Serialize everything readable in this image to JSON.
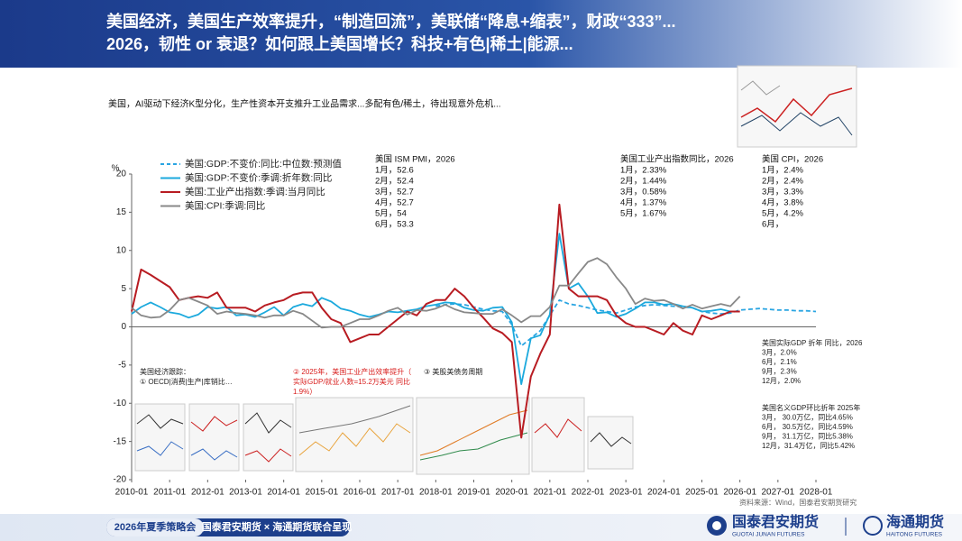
{
  "header": {
    "title_line1": "美国经济，美国生产效率提升，“制造回流”，美联储“降息+缩表”，财政“333”...",
    "title_line2": "2026，韧性 or  衰退？如何跟上美国增长？科技+有色|稀土|能源..."
  },
  "subtitle": "美国，AI驱动下经济K型分化，生产性资本开支推升工业品需求...多配有色/稀土，待出现意外危机...",
  "chart_data": {
    "type": "line",
    "y_unit": "%",
    "x": [
      "2010-01",
      "2010-04",
      "2010-07",
      "2010-10",
      "2011-01",
      "2011-04",
      "2011-07",
      "2011-10",
      "2012-01",
      "2012-04",
      "2012-07",
      "2012-10",
      "2013-01",
      "2013-04",
      "2013-07",
      "2013-10",
      "2014-01",
      "2014-04",
      "2014-07",
      "2014-10",
      "2015-01",
      "2015-04",
      "2015-07",
      "2015-10",
      "2016-01",
      "2016-04",
      "2016-07",
      "2016-10",
      "2017-01",
      "2017-04",
      "2017-07",
      "2017-10",
      "2018-01",
      "2018-04",
      "2018-07",
      "2018-10",
      "2019-01",
      "2019-04",
      "2019-07",
      "2019-10",
      "2020-01",
      "2020-04",
      "2020-07",
      "2020-10",
      "2021-01",
      "2021-04",
      "2021-07",
      "2021-10",
      "2022-01",
      "2022-04",
      "2022-07",
      "2022-10",
      "2023-01",
      "2023-04",
      "2023-07",
      "2023-10",
      "2024-01",
      "2024-04",
      "2024-07",
      "2024-10",
      "2025-01",
      "2025-04",
      "2025-07",
      "2025-10",
      "2026-01",
      "2026-04",
      "2026-07",
      "2026-10",
      "2027-01",
      "2027-04",
      "2027-07",
      "2027-10",
      "2028-01"
    ],
    "series": [
      {
        "name": "美国:GDP:不变价:同比:中位数:预测值",
        "color": "#2aa5e2",
        "style": "dashed",
        "values": [
          null,
          null,
          null,
          null,
          null,
          null,
          null,
          null,
          null,
          null,
          null,
          null,
          null,
          null,
          null,
          null,
          null,
          null,
          null,
          null,
          null,
          null,
          null,
          null,
          null,
          null,
          null,
          null,
          null,
          null,
          null,
          null,
          2.7,
          2.9,
          3.0,
          2.9,
          2.6,
          2.3,
          2.1,
          2.0,
          0.3,
          -2.5,
          -1.5,
          -0.5,
          1.5,
          3.5,
          3.0,
          2.8,
          2.5,
          2.2,
          2.0,
          1.8,
          2.2,
          2.6,
          2.8,
          2.9,
          2.8,
          2.7,
          2.6,
          2.5,
          2.0,
          1.8,
          1.7,
          1.8,
          2.2,
          2.3,
          2.4,
          2.3,
          2.2,
          2.2,
          2.1,
          2.1,
          2.0
        ]
      },
      {
        "name": "美国:GDP:不变价:季调:折年数:同比",
        "color": "#1ba9dd",
        "style": "solid",
        "values": [
          1.7,
          2.6,
          3.2,
          2.6,
          1.9,
          1.7,
          1.2,
          1.6,
          2.6,
          2.4,
          2.6,
          1.5,
          1.6,
          1.3,
          1.9,
          2.6,
          1.5,
          2.6,
          3.0,
          2.7,
          3.8,
          3.3,
          2.4,
          2.1,
          1.6,
          1.3,
          1.6,
          2.0,
          1.9,
          2.1,
          2.3,
          2.7,
          2.9,
          3.2,
          3.1,
          2.5,
          2.2,
          2.1,
          2.5,
          2.6,
          0.6,
          -7.5,
          -1.5,
          -1.1,
          1.6,
          12.2,
          5.0,
          5.7,
          4.0,
          1.8,
          1.9,
          1.3,
          1.7,
          2.4,
          3.2,
          3.2,
          2.9,
          3.0,
          2.7,
          2.5,
          2.0,
          2.1,
          2.3,
          2.0,
          null,
          null,
          null,
          null,
          null,
          null,
          null,
          null,
          null
        ]
      },
      {
        "name": "美国:工业产出指数:季调:当月同比",
        "color": "#b81c22",
        "style": "solid",
        "values": [
          2.0,
          7.5,
          6.8,
          6.0,
          5.2,
          3.5,
          3.8,
          4.0,
          3.8,
          4.5,
          2.5,
          2.5,
          2.5,
          2.0,
          2.8,
          3.2,
          3.5,
          4.2,
          4.5,
          4.5,
          2.5,
          1.0,
          0.5,
          -2.0,
          -1.5,
          -1.0,
          -1.0,
          0.0,
          1.0,
          2.0,
          1.5,
          3.0,
          3.5,
          3.5,
          5.0,
          4.0,
          2.5,
          1.2,
          -0.2,
          -0.8,
          -2.0,
          -14.5,
          -6.5,
          -3.5,
          -1.0,
          16.0,
          5.0,
          4.0,
          4.0,
          4.0,
          3.5,
          1.5,
          0.5,
          0.0,
          0.0,
          -0.5,
          -1.0,
          0.5,
          -0.5,
          -1.0,
          1.5,
          1.0,
          1.5,
          2.0,
          2.0,
          null,
          null,
          null,
          null,
          null,
          null,
          null,
          null
        ]
      },
      {
        "name": "美国:CPI:季调:同比",
        "color": "#888888",
        "style": "solid",
        "values": [
          2.5,
          1.5,
          1.2,
          1.3,
          2.2,
          3.5,
          3.8,
          3.3,
          2.8,
          1.7,
          2.0,
          1.8,
          1.7,
          1.5,
          1.2,
          1.5,
          1.5,
          2.1,
          1.7,
          0.8,
          -0.1,
          0.0,
          0.0,
          0.5,
          1.0,
          1.0,
          1.5,
          2.1,
          2.5,
          1.6,
          2.2,
          2.1,
          2.4,
          2.9,
          2.3,
          1.9,
          1.8,
          1.7,
          1.7,
          2.3,
          1.5,
          0.6,
          1.4,
          1.4,
          2.6,
          5.4,
          5.4,
          7.0,
          8.5,
          9.0,
          8.2,
          6.5,
          5.0,
          3.0,
          3.7,
          3.4,
          3.5,
          3.0,
          2.4,
          2.9,
          2.4,
          2.7,
          3.0,
          2.7,
          4.0,
          null,
          null,
          null,
          null,
          null,
          null,
          null,
          null
        ]
      }
    ],
    "xlim": [
      "2010-01",
      "2028-01"
    ],
    "xticks": [
      "2010-01",
      "2011-01",
      "2012-01",
      "2013-01",
      "2014-01",
      "2015-01",
      "2016-01",
      "2017-01",
      "2018-01",
      "2019-01",
      "2020-01",
      "2021-01",
      "2022-01",
      "2023-01",
      "2024-01",
      "2025-01",
      "2026-01",
      "2027-01",
      "2028-01"
    ],
    "ylim": [
      -20,
      20
    ],
    "yticks": [
      -20,
      -15,
      -10,
      -5,
      0,
      5,
      10,
      15,
      20
    ],
    "grid": false,
    "legend": "top-left"
  },
  "notes": [
    {
      "title": "美国 ISM PMI，2026",
      "rows": [
        "1月，52.6",
        "2月，52.4",
        "3月，52.7",
        "4月，52.7",
        "5月，54",
        "6月，53.3"
      ]
    },
    {
      "title": "美国工业产出指数同比，2026",
      "rows": [
        "1月，2.33%",
        "2月，1.44%",
        "3月，0.58%",
        "4月，1.37%",
        "5月，1.67%"
      ]
    },
    {
      "title": "美国 CPI，2026",
      "rows": [
        "1月，2.4%",
        "2月，2.4%",
        "3月，3.3%",
        "4月，3.8%",
        "5月，4.2%",
        "6月，"
      ]
    },
    {
      "title": "美国实际GDP 折年 同比，2026",
      "rows": [
        "3月，2.0%",
        "6月，2.1%",
        "9月，2.3%",
        "12月，2.0%"
      ]
    },
    {
      "title": "美国名义GDP环比折年 2025年",
      "rows": [
        "3月，  30.0万亿，同比4.65%",
        "6月，  30.5万亿，同比4.59%",
        "9月，  31.1万亿，同比5.38%",
        "12月，31.4万亿，同比5.42%"
      ]
    }
  ],
  "insets": [
    {
      "rows": [
        "美国经济跟踪：",
        "① OECD|消费|生产|库销比…"
      ]
    },
    {
      "rows": [
        "② 2025年，美国工业产出效率提升（",
        "实际GDP/就业人数=15.2万美元 同比",
        "1.9%）"
      ]
    },
    {
      "rows": [
        "③ 美股美债务周期"
      ]
    }
  ],
  "source": "资料来源：Wind，国泰君安期货研究",
  "footer": {
    "event": "2026年夏季策略会",
    "host": "国泰君安期货 × 海通期货联合呈现",
    "logo1": "国泰君安期货",
    "logo1_en": "GUOTAI JUNAN FUTURES",
    "logo2": "海通期货",
    "logo2_en": "HAITONG FUTURES"
  }
}
